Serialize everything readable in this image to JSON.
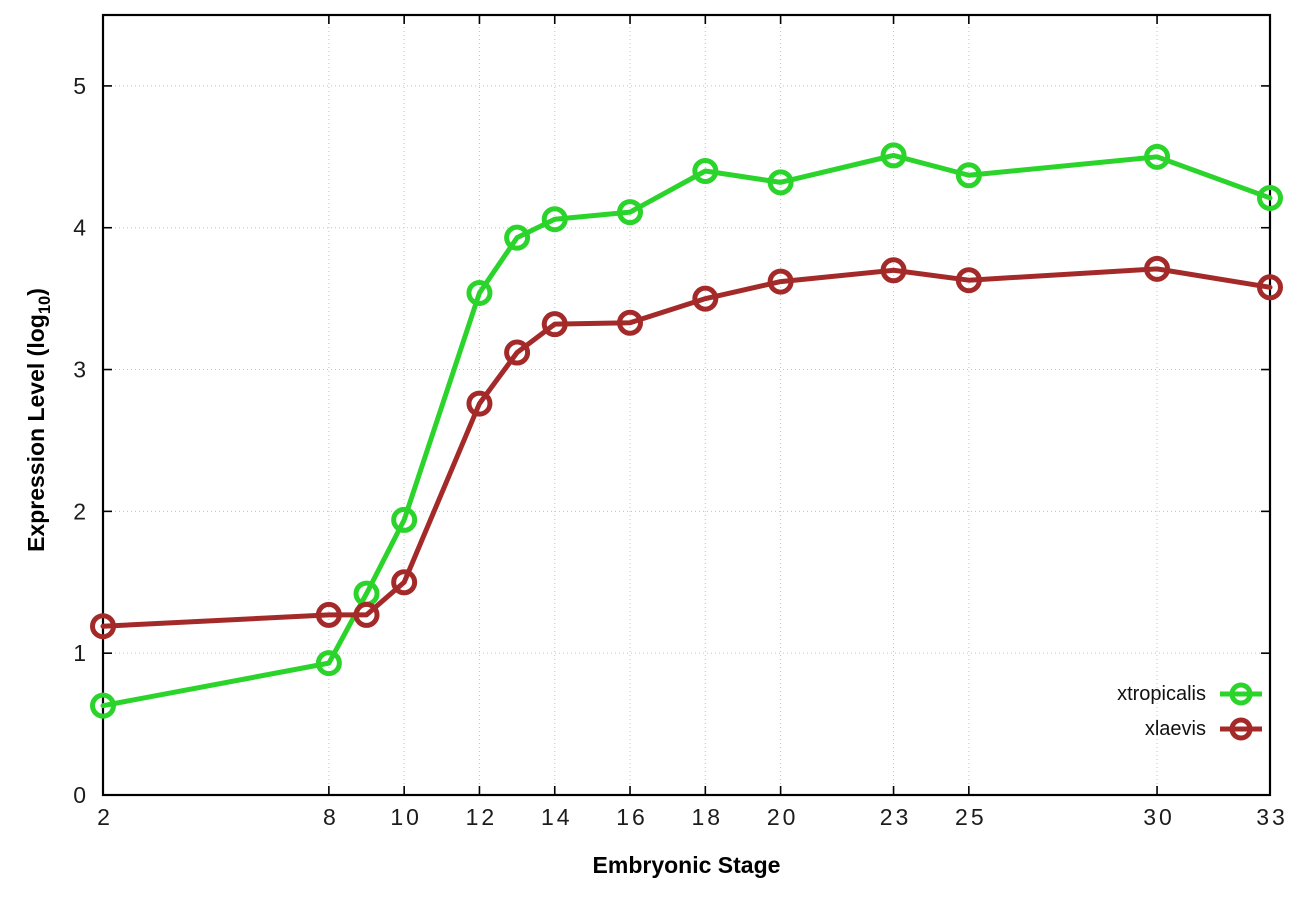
{
  "chart_data": {
    "type": "line",
    "x": [
      2,
      8,
      9,
      10,
      12,
      13,
      14,
      16,
      18,
      20,
      23,
      25,
      30,
      33
    ],
    "series": [
      {
        "name": "xtropicalis",
        "color": "#2bd42b",
        "values": [
          0.63,
          0.93,
          1.42,
          1.94,
          3.54,
          3.93,
          4.06,
          4.11,
          4.4,
          4.32,
          4.51,
          4.37,
          4.5,
          4.21
        ]
      },
      {
        "name": "xlaevis",
        "color": "#a42a2a",
        "values": [
          1.19,
          1.27,
          1.27,
          1.5,
          2.76,
          3.12,
          3.32,
          3.33,
          3.5,
          3.62,
          3.7,
          3.63,
          3.71,
          3.58
        ]
      }
    ],
    "title": "",
    "xlabel": "Embryonic Stage",
    "ylabel": "Expression Level (log10)",
    "xticks": [
      2,
      8,
      10,
      12,
      14,
      16,
      18,
      20,
      23,
      25,
      30,
      33
    ],
    "yticks": [
      0,
      1,
      2,
      3,
      4,
      5
    ],
    "xlim": [
      2,
      33
    ],
    "ylim": [
      0,
      5.5
    ],
    "grid": true,
    "grid_style": "dotted",
    "legend_position": "inside bottom-right",
    "colors": {
      "axis": "#000000",
      "grid": "#c3c3c3",
      "tick_text": "#1c1c1c",
      "background": "#ffffff"
    }
  },
  "labels": {
    "xlabel": "Embryonic Stage",
    "ylabel_prefix": "Expression Level (log",
    "ylabel_sub": "10",
    "ylabel_suffix": ")"
  }
}
